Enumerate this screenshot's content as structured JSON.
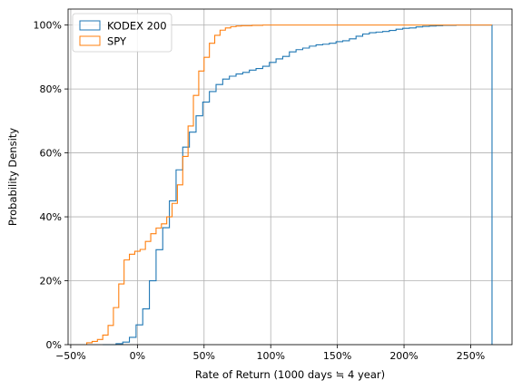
{
  "chart_data": {
    "type": "line",
    "style": "cumulative-step-histogram",
    "title": "",
    "xlabel": "Rate of Return (1000 days ≒ 4 year)",
    "ylabel": "Probability Density",
    "xlim": [
      -52,
      281
    ],
    "ylim": [
      0,
      105
    ],
    "x_ticks": [
      -50,
      0,
      50,
      100,
      150,
      200,
      250
    ],
    "x_tick_labels": [
      "−50%",
      "0%",
      "50%",
      "100%",
      "150%",
      "200%",
      "250%"
    ],
    "y_ticks": [
      0,
      20,
      40,
      60,
      80,
      100
    ],
    "y_tick_labels": [
      "0%",
      "20%",
      "40%",
      "60%",
      "80%",
      "100%"
    ],
    "grid": true,
    "legend_position": "top-left",
    "series": [
      {
        "name": "KODEX 200",
        "color": "#1f77b4",
        "x": [
          -26,
          -21,
          -16,
          -11,
          -6,
          -1,
          4,
          9,
          14,
          19,
          24,
          29,
          34,
          39,
          44,
          49,
          54,
          59,
          64,
          69,
          74,
          79,
          84,
          89,
          94,
          99,
          104,
          109,
          114,
          119,
          124,
          129,
          134,
          139,
          144,
          149,
          154,
          159,
          164,
          169,
          174,
          179,
          184,
          189,
          194,
          199,
          204,
          209,
          214,
          219,
          224,
          229,
          234,
          239,
          244,
          249,
          254,
          259,
          266
        ],
        "y": [
          0,
          0,
          0.3,
          0.8,
          2.3,
          6.2,
          11.2,
          20.0,
          29.7,
          36.6,
          45.0,
          54.7,
          61.8,
          66.5,
          71.6,
          75.9,
          79.2,
          81.4,
          83.1,
          84.0,
          84.7,
          85.2,
          85.9,
          86.4,
          87.1,
          88.3,
          89.4,
          90.2,
          91.6,
          92.3,
          92.8,
          93.4,
          93.8,
          94.0,
          94.3,
          94.8,
          95.1,
          95.7,
          96.5,
          97.2,
          97.6,
          97.8,
          98.0,
          98.3,
          98.7,
          99.0,
          99.1,
          99.4,
          99.6,
          99.7,
          99.8,
          99.9,
          99.9,
          100,
          100,
          100,
          100,
          100,
          0
        ]
      },
      {
        "name": "SPY",
        "color": "#ff7f0e",
        "x": [
          -38,
          -34,
          -30,
          -26,
          -22,
          -18,
          -14,
          -10,
          -6,
          -2,
          2,
          6,
          10,
          14,
          18,
          22,
          26,
          30,
          34,
          38,
          42,
          46,
          50,
          54,
          58,
          62,
          66,
          70,
          74,
          78,
          82,
          86,
          90,
          94,
          98,
          102,
          106,
          110,
          114,
          118,
          122,
          126,
          130,
          134,
          138,
          142,
          146,
          150,
          160,
          170,
          180,
          190,
          200,
          210,
          220,
          230,
          240,
          250,
          260,
          266
        ],
        "y": [
          0.6,
          1.0,
          1.6,
          3.0,
          6.0,
          11.6,
          19.0,
          26.5,
          28.3,
          29.2,
          29.8,
          32.3,
          34.7,
          36.5,
          37.8,
          40.0,
          44.2,
          50.0,
          58.9,
          68.4,
          78.0,
          85.6,
          89.9,
          94.3,
          96.8,
          98.4,
          99.1,
          99.5,
          99.7,
          99.8,
          99.8,
          99.9,
          99.9,
          100,
          100,
          100,
          100,
          100,
          100,
          100,
          100,
          100,
          100,
          100,
          100,
          100,
          100,
          100,
          100,
          100,
          100,
          100,
          100,
          100,
          100,
          100,
          100,
          100,
          100,
          100
        ]
      }
    ]
  }
}
